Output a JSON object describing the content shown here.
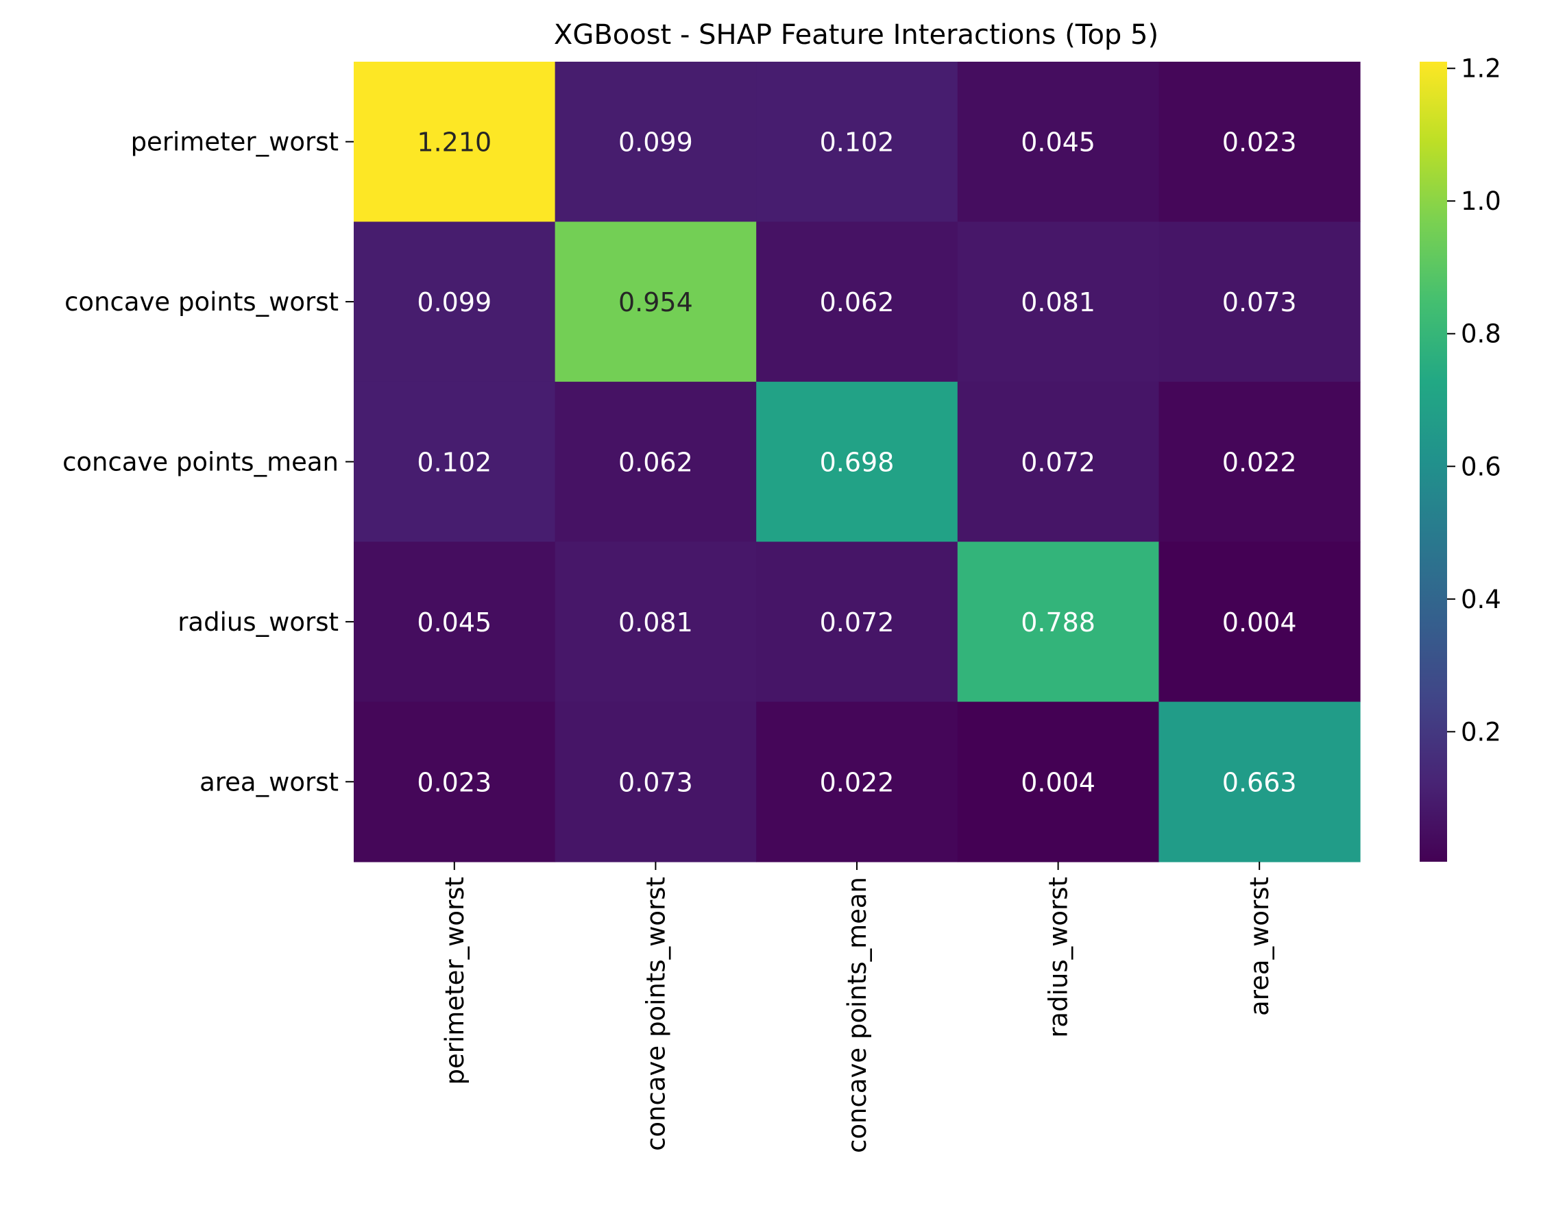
{
  "chart_data": {
    "type": "heatmap",
    "title": "XGBoost - SHAP Feature Interactions (Top 5)",
    "xlabel": "",
    "ylabel": "",
    "rows": [
      "perimeter_worst",
      "concave points_worst",
      "concave points_mean",
      "radius_worst",
      "area_worst"
    ],
    "columns": [
      "perimeter_worst",
      "concave points_worst",
      "concave points_mean",
      "radius_worst",
      "area_worst"
    ],
    "values": [
      [
        1.21,
        0.099,
        0.102,
        0.045,
        0.023
      ],
      [
        0.099,
        0.954,
        0.062,
        0.081,
        0.073
      ],
      [
        0.102,
        0.062,
        0.698,
        0.072,
        0.022
      ],
      [
        0.045,
        0.081,
        0.072,
        0.788,
        0.004
      ],
      [
        0.023,
        0.073,
        0.022,
        0.004,
        0.663
      ]
    ],
    "cell_labels": [
      [
        "1.210",
        "0.099",
        "0.102",
        "0.045",
        "0.023"
      ],
      [
        "0.099",
        "0.954",
        "0.062",
        "0.081",
        "0.073"
      ],
      [
        "0.102",
        "0.062",
        "0.698",
        "0.072",
        "0.022"
      ],
      [
        "0.045",
        "0.081",
        "0.072",
        "0.788",
        "0.004"
      ],
      [
        "0.023",
        "0.073",
        "0.022",
        "0.004",
        "0.663"
      ]
    ],
    "colormap": "viridis",
    "vmin": 0.004,
    "vmax": 1.21,
    "colorbar": {
      "ticks": [
        0.2,
        0.4,
        0.6,
        0.8,
        1.0,
        1.2
      ],
      "tick_labels": [
        "0.2",
        "0.4",
        "0.6",
        "0.8",
        "1.0",
        "1.2"
      ],
      "placement": "right"
    },
    "grid": false
  }
}
